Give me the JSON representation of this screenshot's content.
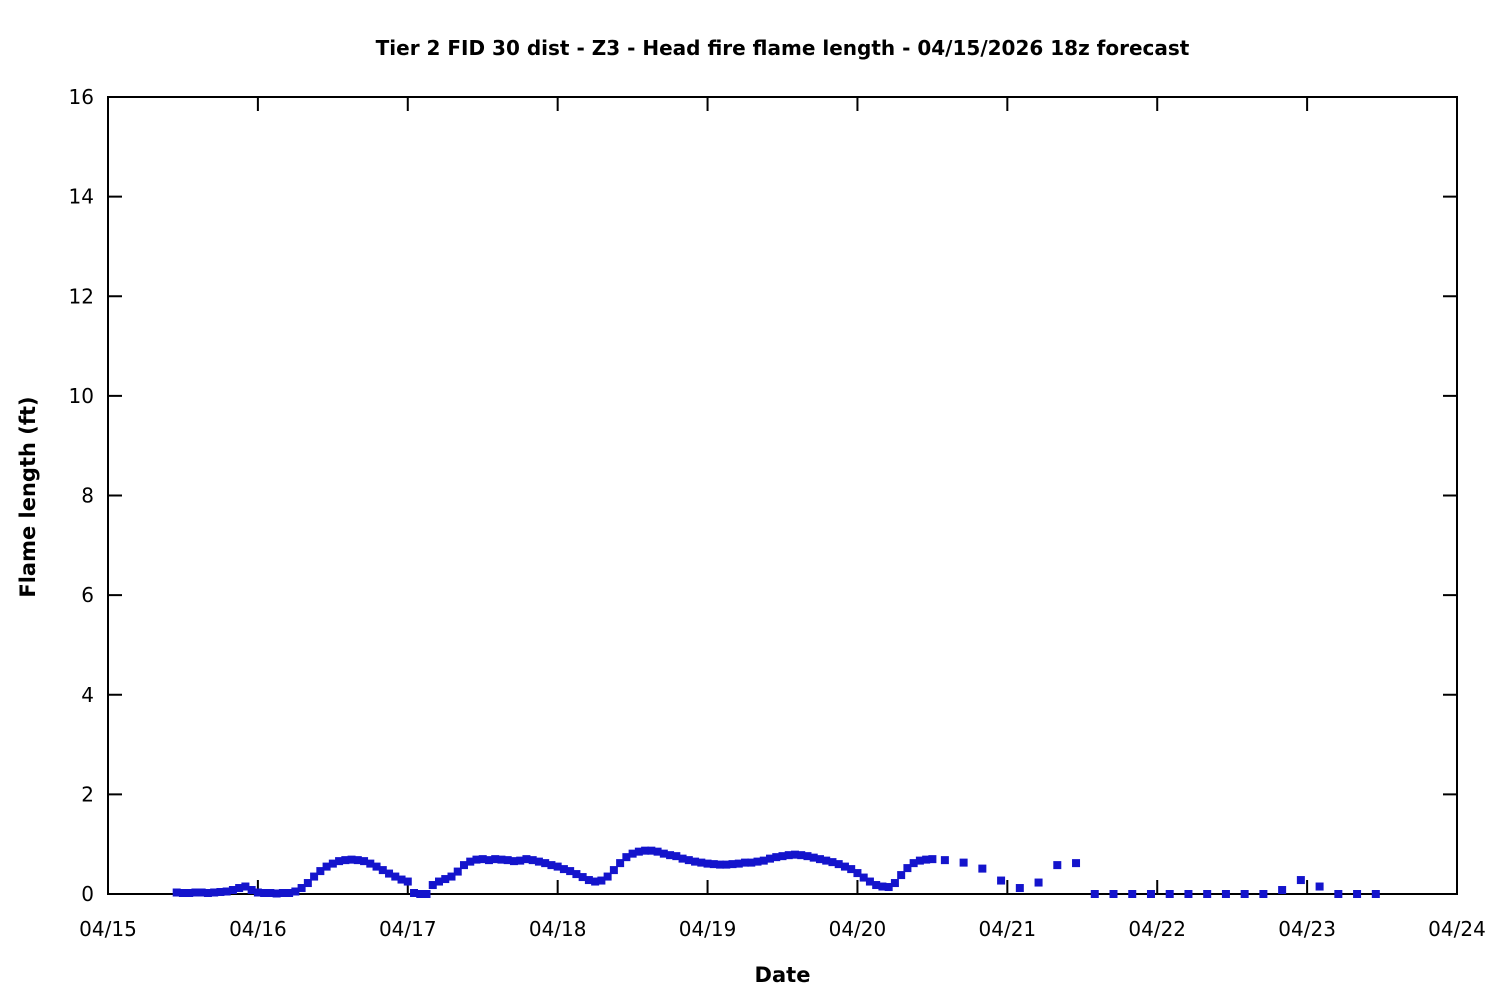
{
  "chart_data": {
    "type": "scatter",
    "title": "Tier 2 FID 30 dist - Z3 - Head fire flame length - 04/15/2026 18z forecast",
    "xlabel": "Date",
    "ylabel": "Flame length (ft)",
    "x_tick_labels": [
      "04/15",
      "04/16",
      "04/17",
      "04/18",
      "04/19",
      "04/20",
      "04/21",
      "04/22",
      "04/23",
      "04/24"
    ],
    "y_tick_labels": [
      "0",
      "2",
      "4",
      "6",
      "8",
      "10",
      "12",
      "14",
      "16"
    ],
    "x_range_days": [
      0,
      9
    ],
    "ylim": [
      0,
      16
    ],
    "y_tick_step": 2,
    "grid": false,
    "legend": "none",
    "marker": {
      "shape": "square",
      "size": 8,
      "color": "#1414cc"
    },
    "axis_color": "#000000",
    "series": [
      {
        "name": "Head fire flame length (ft)",
        "x_unit": "hours since 04/15 00:00",
        "points": [
          [
            11,
            0.03
          ],
          [
            12,
            0.02
          ],
          [
            13,
            0.02
          ],
          [
            14,
            0.03
          ],
          [
            15,
            0.03
          ],
          [
            16,
            0.02
          ],
          [
            17,
            0.03
          ],
          [
            18,
            0.04
          ],
          [
            19,
            0.05
          ],
          [
            20,
            0.08
          ],
          [
            21,
            0.12
          ],
          [
            22,
            0.15
          ],
          [
            23,
            0.08
          ],
          [
            24,
            0.03
          ],
          [
            25,
            0.02
          ],
          [
            26,
            0.02
          ],
          [
            27,
            0.01
          ],
          [
            28,
            0.02
          ],
          [
            29,
            0.02
          ],
          [
            30,
            0.05
          ],
          [
            31,
            0.12
          ],
          [
            32,
            0.22
          ],
          [
            33,
            0.35
          ],
          [
            34,
            0.46
          ],
          [
            35,
            0.55
          ],
          [
            36,
            0.61
          ],
          [
            37,
            0.66
          ],
          [
            38,
            0.68
          ],
          [
            39,
            0.69
          ],
          [
            40,
            0.68
          ],
          [
            41,
            0.66
          ],
          [
            42,
            0.61
          ],
          [
            43,
            0.55
          ],
          [
            44,
            0.48
          ],
          [
            45,
            0.41
          ],
          [
            46,
            0.35
          ],
          [
            47,
            0.29
          ],
          [
            48,
            0.25
          ],
          [
            49,
            0.02
          ],
          [
            50,
            0.0
          ],
          [
            51,
            0.0
          ],
          [
            52,
            0.18
          ],
          [
            53,
            0.25
          ],
          [
            54,
            0.3
          ],
          [
            55,
            0.35
          ],
          [
            56,
            0.45
          ],
          [
            57,
            0.58
          ],
          [
            58,
            0.65
          ],
          [
            59,
            0.69
          ],
          [
            60,
            0.7
          ],
          [
            61,
            0.68
          ],
          [
            62,
            0.7
          ],
          [
            63,
            0.69
          ],
          [
            64,
            0.68
          ],
          [
            65,
            0.66
          ],
          [
            66,
            0.67
          ],
          [
            67,
            0.7
          ],
          [
            68,
            0.68
          ],
          [
            69,
            0.65
          ],
          [
            70,
            0.62
          ],
          [
            71,
            0.58
          ],
          [
            72,
            0.55
          ],
          [
            73,
            0.5
          ],
          [
            74,
            0.46
          ],
          [
            75,
            0.4
          ],
          [
            76,
            0.34
          ],
          [
            77,
            0.28
          ],
          [
            78,
            0.25
          ],
          [
            79,
            0.27
          ],
          [
            80,
            0.35
          ],
          [
            81,
            0.48
          ],
          [
            82,
            0.62
          ],
          [
            83,
            0.74
          ],
          [
            84,
            0.81
          ],
          [
            85,
            0.85
          ],
          [
            86,
            0.87
          ],
          [
            87,
            0.87
          ],
          [
            88,
            0.85
          ],
          [
            89,
            0.81
          ],
          [
            90,
            0.78
          ],
          [
            91,
            0.76
          ],
          [
            92,
            0.71
          ],
          [
            93,
            0.68
          ],
          [
            94,
            0.65
          ],
          [
            95,
            0.63
          ],
          [
            96,
            0.61
          ],
          [
            97,
            0.6
          ],
          [
            98,
            0.59
          ],
          [
            99,
            0.59
          ],
          [
            100,
            0.6
          ],
          [
            101,
            0.61
          ],
          [
            102,
            0.63
          ],
          [
            103,
            0.63
          ],
          [
            104,
            0.65
          ],
          [
            105,
            0.67
          ],
          [
            106,
            0.71
          ],
          [
            107,
            0.74
          ],
          [
            108,
            0.76
          ],
          [
            109,
            0.78
          ],
          [
            110,
            0.79
          ],
          [
            111,
            0.78
          ],
          [
            112,
            0.76
          ],
          [
            113,
            0.73
          ],
          [
            114,
            0.7
          ],
          [
            115,
            0.67
          ],
          [
            116,
            0.64
          ],
          [
            117,
            0.6
          ],
          [
            118,
            0.55
          ],
          [
            119,
            0.5
          ],
          [
            120,
            0.42
          ],
          [
            121,
            0.33
          ],
          [
            122,
            0.25
          ],
          [
            123,
            0.18
          ],
          [
            124,
            0.15
          ],
          [
            125,
            0.14
          ],
          [
            126,
            0.22
          ],
          [
            127,
            0.38
          ],
          [
            128,
            0.52
          ],
          [
            129,
            0.62
          ],
          [
            130,
            0.67
          ],
          [
            131,
            0.69
          ],
          [
            132,
            0.7
          ],
          [
            134,
            0.68
          ],
          [
            137,
            0.63
          ],
          [
            140,
            0.51
          ],
          [
            143,
            0.27
          ],
          [
            146,
            0.12
          ],
          [
            149,
            0.23
          ],
          [
            152,
            0.58
          ],
          [
            155,
            0.62
          ],
          [
            158,
            0.0
          ],
          [
            161,
            0.0
          ],
          [
            164,
            0.0
          ],
          [
            167,
            0.0
          ],
          [
            170,
            0.0
          ],
          [
            173,
            0.0
          ],
          [
            176,
            0.0
          ],
          [
            179,
            0.0
          ],
          [
            182,
            0.0
          ],
          [
            185,
            0.0
          ],
          [
            188,
            0.08
          ],
          [
            191,
            0.28
          ],
          [
            194,
            0.15
          ],
          [
            197,
            0.0
          ],
          [
            200,
            0.0
          ],
          [
            203,
            0.0
          ]
        ]
      }
    ]
  }
}
